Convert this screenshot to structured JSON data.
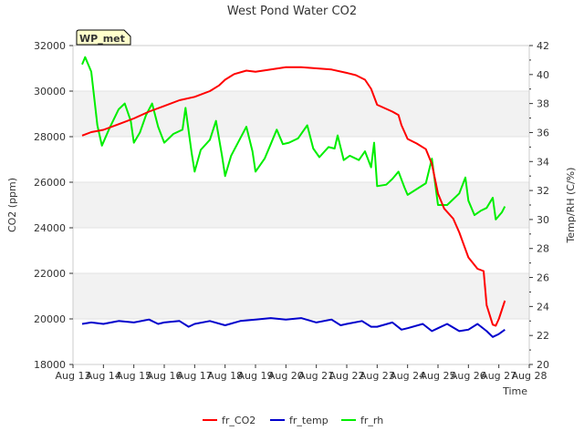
{
  "chart_data": {
    "type": "line",
    "title": "West Pond Water CO2",
    "badge": "WP_met",
    "xlabel": "Time",
    "ylabel_left": "CO2 (ppm)",
    "ylabel_right": "Temp/RH (C/%)",
    "x_ticks": [
      "Aug 13",
      "Aug 14",
      "Aug 15",
      "Aug 16",
      "Aug 17",
      "Aug 18",
      "Aug 19",
      "Aug 20",
      "Aug 21",
      "Aug 22",
      "Aug 23",
      "Aug 24",
      "Aug 25",
      "Aug 26",
      "Aug 27",
      "Aug 28"
    ],
    "xlim_days": [
      13,
      28
    ],
    "y_left": {
      "lim": [
        18000,
        32000
      ],
      "ticks": [
        18000,
        20000,
        22000,
        24000,
        26000,
        28000,
        30000,
        32000
      ]
    },
    "y_right": {
      "lim": [
        20,
        42
      ],
      "ticks": [
        20,
        22,
        24,
        26,
        28,
        30,
        32,
        34,
        36,
        38,
        40,
        42
      ]
    },
    "shaded_bands": [
      [
        20000,
        22000
      ],
      [
        24000,
        26000
      ],
      [
        28000,
        30000
      ]
    ],
    "legend": {
      "placement": "bottom-center"
    },
    "colors": {
      "fr_CO2": "#ff0000",
      "fr_temp": "#0000cc",
      "fr_rh": "#00ee00",
      "band": "#f2f2f2",
      "badge_bg": "#ffffcc",
      "badge_text": "#8b0000"
    },
    "series": [
      {
        "name": "fr_CO2",
        "axis": "left",
        "points": [
          [
            13.3,
            28050
          ],
          [
            13.6,
            28200
          ],
          [
            14.0,
            28300
          ],
          [
            14.5,
            28550
          ],
          [
            15.0,
            28800
          ],
          [
            15.5,
            29100
          ],
          [
            16.0,
            29350
          ],
          [
            16.5,
            29600
          ],
          [
            17.0,
            29750
          ],
          [
            17.5,
            30000
          ],
          [
            17.8,
            30250
          ],
          [
            18.0,
            30500
          ],
          [
            18.3,
            30750
          ],
          [
            18.7,
            30900
          ],
          [
            19.0,
            30850
          ],
          [
            19.5,
            30950
          ],
          [
            20.0,
            31050
          ],
          [
            20.5,
            31050
          ],
          [
            21.0,
            31000
          ],
          [
            21.5,
            30950
          ],
          [
            22.0,
            30800
          ],
          [
            22.3,
            30700
          ],
          [
            22.6,
            30500
          ],
          [
            22.8,
            30100
          ],
          [
            23.0,
            29400
          ],
          [
            23.5,
            29100
          ],
          [
            23.7,
            28950
          ],
          [
            23.8,
            28500
          ],
          [
            24.0,
            27900
          ],
          [
            24.3,
            27700
          ],
          [
            24.6,
            27450
          ],
          [
            24.8,
            26800
          ],
          [
            25.0,
            25500
          ],
          [
            25.2,
            24850
          ],
          [
            25.5,
            24400
          ],
          [
            25.7,
            23800
          ],
          [
            26.0,
            22700
          ],
          [
            26.3,
            22200
          ],
          [
            26.5,
            22100
          ],
          [
            26.6,
            20600
          ],
          [
            26.8,
            19750
          ],
          [
            26.9,
            19700
          ],
          [
            27.0,
            20000
          ],
          [
            27.1,
            20400
          ],
          [
            27.2,
            20800
          ]
        ]
      },
      {
        "name": "fr_temp",
        "axis": "right",
        "points": [
          [
            13.3,
            22.8
          ],
          [
            13.6,
            22.9
          ],
          [
            14.0,
            22.8
          ],
          [
            14.5,
            23.0
          ],
          [
            15.0,
            22.9
          ],
          [
            15.5,
            23.1
          ],
          [
            15.8,
            22.8
          ],
          [
            16.0,
            22.9
          ],
          [
            16.5,
            23.0
          ],
          [
            16.8,
            22.6
          ],
          [
            17.0,
            22.8
          ],
          [
            17.5,
            23.0
          ],
          [
            18.0,
            22.7
          ],
          [
            18.5,
            23.0
          ],
          [
            19.0,
            23.1
          ],
          [
            19.5,
            23.2
          ],
          [
            20.0,
            23.1
          ],
          [
            20.5,
            23.2
          ],
          [
            21.0,
            22.9
          ],
          [
            21.5,
            23.1
          ],
          [
            21.8,
            22.7
          ],
          [
            22.0,
            22.8
          ],
          [
            22.5,
            23.0
          ],
          [
            22.8,
            22.6
          ],
          [
            23.0,
            22.6
          ],
          [
            23.5,
            22.9
          ],
          [
            23.8,
            22.4
          ],
          [
            24.0,
            22.5
          ],
          [
            24.5,
            22.8
          ],
          [
            24.8,
            22.3
          ],
          [
            25.0,
            22.5
          ],
          [
            25.3,
            22.8
          ],
          [
            25.7,
            22.3
          ],
          [
            26.0,
            22.4
          ],
          [
            26.3,
            22.8
          ],
          [
            26.6,
            22.3
          ],
          [
            26.8,
            21.9
          ],
          [
            27.0,
            22.1
          ],
          [
            27.2,
            22.4
          ]
        ]
      },
      {
        "name": "fr_rh",
        "axis": "right",
        "points": [
          [
            13.3,
            40.7
          ],
          [
            13.4,
            41.2
          ],
          [
            13.6,
            40.2
          ],
          [
            13.8,
            36.5
          ],
          [
            13.95,
            35.1
          ],
          [
            14.2,
            36.3
          ],
          [
            14.5,
            37.6
          ],
          [
            14.7,
            38.0
          ],
          [
            14.9,
            36.8
          ],
          [
            15.0,
            35.3
          ],
          [
            15.2,
            36.0
          ],
          [
            15.4,
            37.2
          ],
          [
            15.6,
            38.0
          ],
          [
            15.8,
            36.4
          ],
          [
            16.0,
            35.3
          ],
          [
            16.3,
            35.9
          ],
          [
            16.6,
            36.2
          ],
          [
            16.7,
            37.7
          ],
          [
            16.9,
            34.6
          ],
          [
            17.0,
            33.3
          ],
          [
            17.2,
            34.8
          ],
          [
            17.5,
            35.5
          ],
          [
            17.7,
            36.8
          ],
          [
            17.9,
            34.4
          ],
          [
            18.0,
            33.0
          ],
          [
            18.2,
            34.4
          ],
          [
            18.5,
            35.6
          ],
          [
            18.7,
            36.4
          ],
          [
            18.9,
            34.7
          ],
          [
            19.0,
            33.3
          ],
          [
            19.3,
            34.2
          ],
          [
            19.5,
            35.2
          ],
          [
            19.7,
            36.2
          ],
          [
            19.9,
            35.2
          ],
          [
            20.1,
            35.3
          ],
          [
            20.4,
            35.6
          ],
          [
            20.7,
            36.5
          ],
          [
            20.9,
            34.9
          ],
          [
            21.1,
            34.3
          ],
          [
            21.4,
            35.0
          ],
          [
            21.6,
            34.9
          ],
          [
            21.7,
            35.8
          ],
          [
            21.9,
            34.1
          ],
          [
            22.1,
            34.4
          ],
          [
            22.4,
            34.1
          ],
          [
            22.6,
            34.7
          ],
          [
            22.8,
            33.6
          ],
          [
            22.9,
            35.3
          ],
          [
            23.0,
            32.3
          ],
          [
            23.3,
            32.4
          ],
          [
            23.5,
            32.8
          ],
          [
            23.7,
            33.3
          ],
          [
            23.9,
            32.2
          ],
          [
            24.0,
            31.7
          ],
          [
            24.3,
            32.1
          ],
          [
            24.6,
            32.5
          ],
          [
            24.8,
            34.2
          ],
          [
            25.0,
            31.0
          ],
          [
            25.3,
            31.0
          ],
          [
            25.5,
            31.4
          ],
          [
            25.7,
            31.8
          ],
          [
            25.9,
            32.9
          ],
          [
            26.0,
            31.3
          ],
          [
            26.2,
            30.3
          ],
          [
            26.4,
            30.6
          ],
          [
            26.6,
            30.8
          ],
          [
            26.8,
            31.5
          ],
          [
            26.9,
            30.0
          ],
          [
            27.1,
            30.5
          ],
          [
            27.2,
            30.9
          ]
        ]
      }
    ]
  }
}
